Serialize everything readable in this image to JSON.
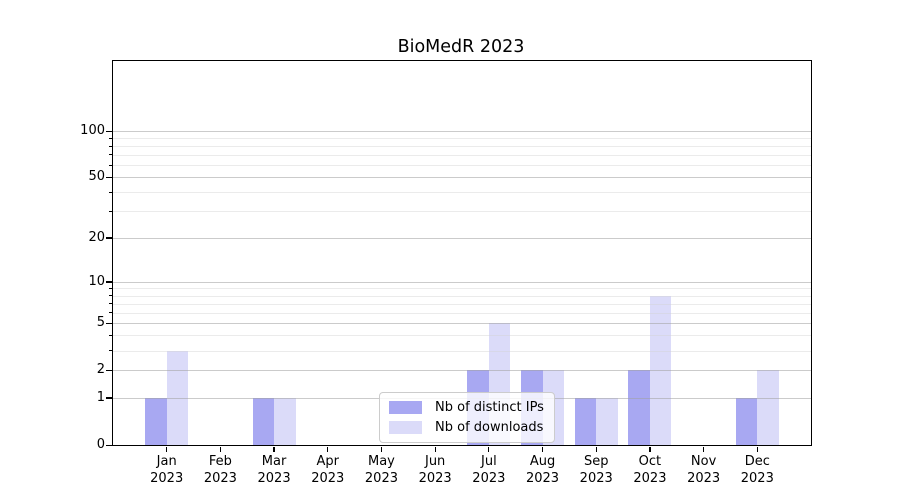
{
  "title": "BioMedR 2023",
  "chart_data": {
    "type": "bar",
    "title": "BioMedR 2023",
    "categories": [
      [
        "Jan",
        "2023"
      ],
      [
        "Feb",
        "2023"
      ],
      [
        "Mar",
        "2023"
      ],
      [
        "Apr",
        "2023"
      ],
      [
        "May",
        "2023"
      ],
      [
        "Jun",
        "2023"
      ],
      [
        "Jul",
        "2023"
      ],
      [
        "Aug",
        "2023"
      ],
      [
        "Sep",
        "2023"
      ],
      [
        "Oct",
        "2023"
      ],
      [
        "Nov",
        "2023"
      ],
      [
        "Dec",
        "2023"
      ]
    ],
    "series": [
      {
        "name": "Nb of distinct IPs",
        "color": "#a8a8f2",
        "values": [
          1,
          0,
          1,
          0,
          0,
          0,
          2,
          2,
          1,
          2,
          0,
          1
        ]
      },
      {
        "name": "Nb of downloads",
        "color": "#dbdbf9",
        "values": [
          3,
          0,
          1,
          0,
          0,
          0,
          5,
          2,
          1,
          8,
          0,
          2
        ]
      }
    ],
    "xlabel": "",
    "ylabel": "",
    "y_scale": "log10(1+x)",
    "ylim": [
      0,
      113
    ],
    "y_major_ticks": [
      0,
      1,
      2,
      5,
      10,
      20,
      50,
      100
    ],
    "y_minor_gridlines": [
      3,
      4,
      6,
      7,
      8,
      9,
      30,
      40,
      60,
      70,
      80,
      90
    ],
    "grid": true,
    "gridlines_above_bars": true,
    "legend_position": "inside-bottom-center",
    "colors": {
      "major_grid": "#a0a0a0",
      "minor_grid": "#d2d2d2",
      "axis": "#000000",
      "background": "#ffffff"
    }
  }
}
